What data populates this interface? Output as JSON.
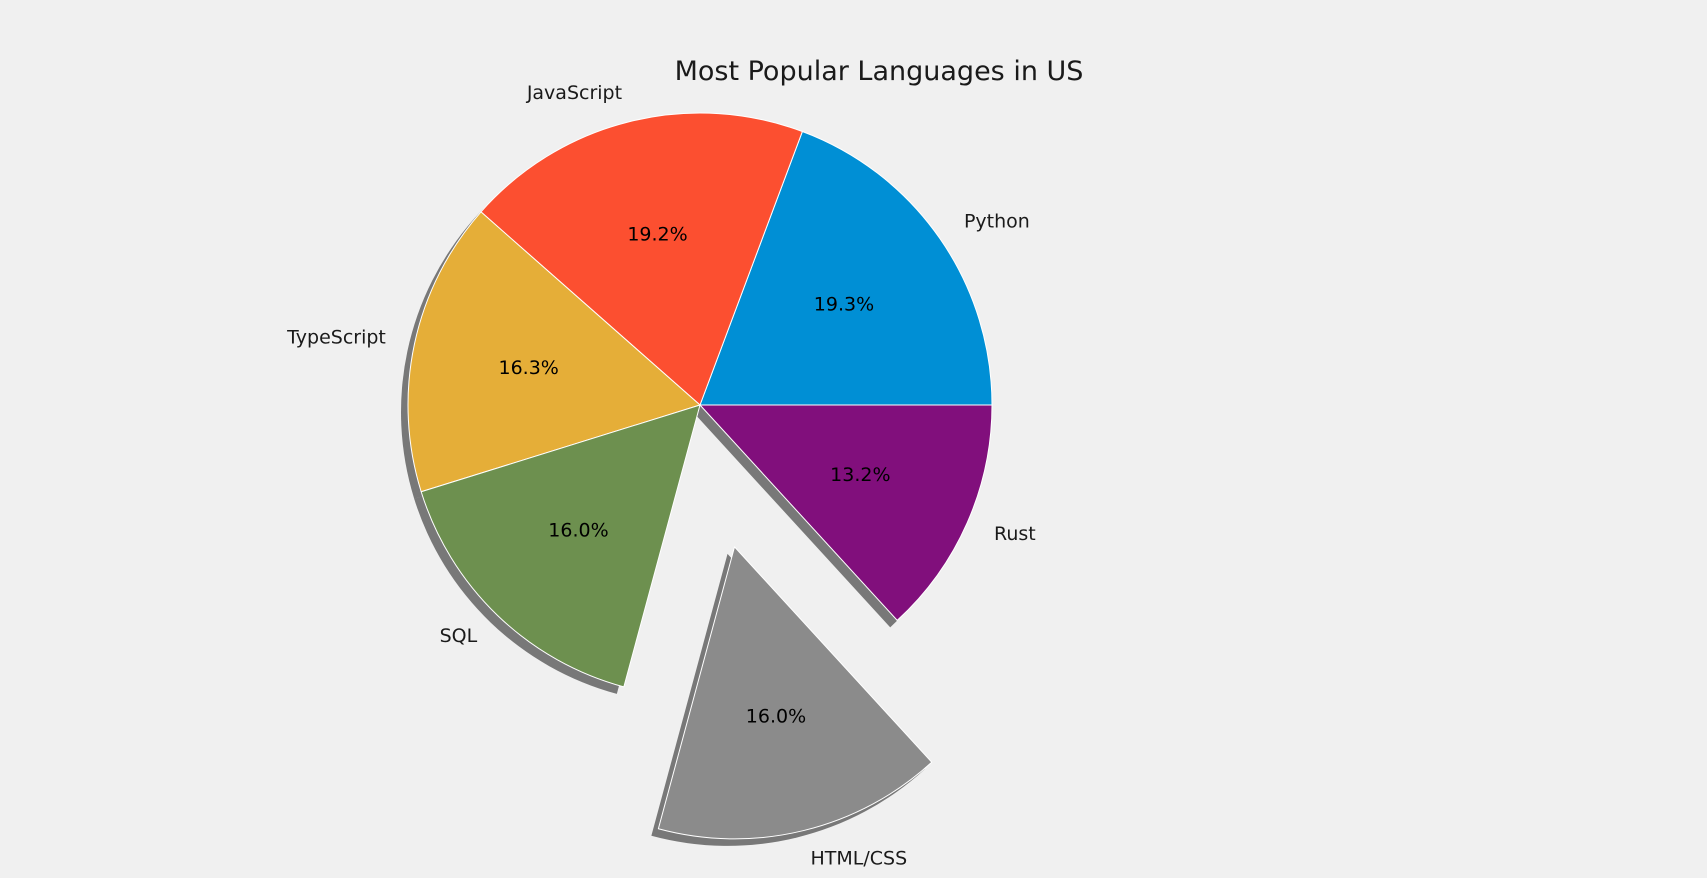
{
  "chart_data": {
    "type": "pie",
    "title": "Most Popular Languages in US",
    "labels": [
      "Python",
      "JavaScript",
      "TypeScript",
      "SQL",
      "HTML/CSS",
      "Rust"
    ],
    "values": [
      19.3,
      19.2,
      16.3,
      16.0,
      16.0,
      13.2
    ],
    "percent_labels": [
      "19.3%",
      "19.2%",
      "16.3%",
      "16.0%",
      "16.0%",
      "13.2%"
    ],
    "colors": [
      "#008fd5",
      "#fc4f30",
      "#e5ae38",
      "#6d904f",
      "#8b8b8b",
      "#810f7c"
    ],
    "explode": [
      0,
      0,
      0,
      0,
      0.5,
      0
    ],
    "start_angle_degrees": 0,
    "direction": "counterclockwise",
    "shadow": true
  }
}
